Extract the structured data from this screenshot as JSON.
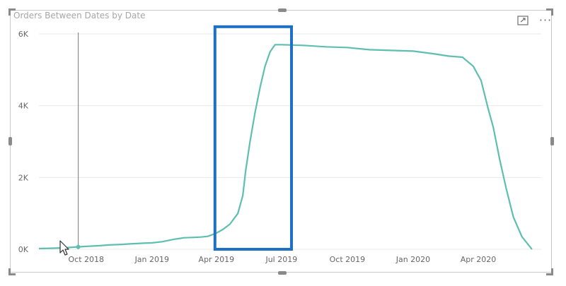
{
  "visual": {
    "title": "Orders Between Dates by Date",
    "focus_mode_icon": "focus-mode-icon",
    "more_options_icon": "more-options-icon",
    "more_options_label": "···"
  },
  "colors": {
    "line": "#5ebfb0",
    "highlight_box": "#1f6fc2",
    "gridline": "#e8e8e8",
    "crosshair": "#7a7a7a"
  },
  "chart_data": {
    "type": "line",
    "title": "Orders Between Dates by Date",
    "xlabel": "",
    "ylabel": "",
    "ylim": [
      0,
      6000
    ],
    "y_ticks": [
      {
        "value": 0,
        "label": "0K"
      },
      {
        "value": 2000,
        "label": "2K"
      },
      {
        "value": 4000,
        "label": "4K"
      },
      {
        "value": 6000,
        "label": "6K"
      }
    ],
    "xlim": [
      "2018-07-27",
      "2020-06-28"
    ],
    "x_ticks": [
      {
        "date": "2018-10-01",
        "label": "Oct 2018"
      },
      {
        "date": "2019-01-01",
        "label": "Jan 2019"
      },
      {
        "date": "2019-04-01",
        "label": "Apr 2019"
      },
      {
        "date": "2019-07-01",
        "label": "Jul 2019"
      },
      {
        "date": "2019-10-01",
        "label": "Oct 2019"
      },
      {
        "date": "2020-01-01",
        "label": "Jan 2020"
      },
      {
        "date": "2020-04-01",
        "label": "Apr 2020"
      }
    ],
    "grid": true,
    "series": [
      {
        "points": [
          [
            "2018-07-27",
            20
          ],
          [
            "2018-08-15",
            30
          ],
          [
            "2018-09-01",
            40
          ],
          [
            "2018-09-15",
            60
          ],
          [
            "2018-10-01",
            80
          ],
          [
            "2018-10-20",
            100
          ],
          [
            "2018-11-01",
            120
          ],
          [
            "2018-11-20",
            135
          ],
          [
            "2018-12-01",
            150
          ],
          [
            "2018-12-20",
            170
          ],
          [
            "2019-01-01",
            180
          ],
          [
            "2019-01-15",
            210
          ],
          [
            "2019-02-01",
            280
          ],
          [
            "2019-02-15",
            320
          ],
          [
            "2019-03-01",
            330
          ],
          [
            "2019-03-10",
            340
          ],
          [
            "2019-03-20",
            360
          ],
          [
            "2019-04-01",
            450
          ],
          [
            "2019-04-10",
            550
          ],
          [
            "2019-04-20",
            700
          ],
          [
            "2019-05-01",
            1000
          ],
          [
            "2019-05-08",
            1500
          ],
          [
            "2019-05-12",
            2200
          ],
          [
            "2019-05-18",
            3000
          ],
          [
            "2019-05-25",
            3800
          ],
          [
            "2019-06-01",
            4500
          ],
          [
            "2019-06-08",
            5100
          ],
          [
            "2019-06-15",
            5500
          ],
          [
            "2019-06-22",
            5700
          ],
          [
            "2019-07-01",
            5700
          ],
          [
            "2019-08-01",
            5680
          ],
          [
            "2019-09-01",
            5640
          ],
          [
            "2019-10-01",
            5620
          ],
          [
            "2019-11-01",
            5560
          ],
          [
            "2019-12-01",
            5540
          ],
          [
            "2020-01-01",
            5520
          ],
          [
            "2020-02-01",
            5440
          ],
          [
            "2020-02-20",
            5380
          ],
          [
            "2020-03-10",
            5350
          ],
          [
            "2020-03-25",
            5100
          ],
          [
            "2020-04-05",
            4700
          ],
          [
            "2020-04-15",
            3900
          ],
          [
            "2020-04-22",
            3400
          ],
          [
            "2020-05-01",
            2500
          ],
          [
            "2020-05-10",
            1700
          ],
          [
            "2020-05-20",
            900
          ],
          [
            "2020-06-01",
            350
          ],
          [
            "2020-06-15",
            0
          ]
        ]
      }
    ],
    "highlight_range": {
      "x_start": "2019-03-30",
      "x_end": "2019-07-15",
      "y_start": 0,
      "y_end": 6200
    },
    "crosshair_date": "2018-09-20"
  }
}
